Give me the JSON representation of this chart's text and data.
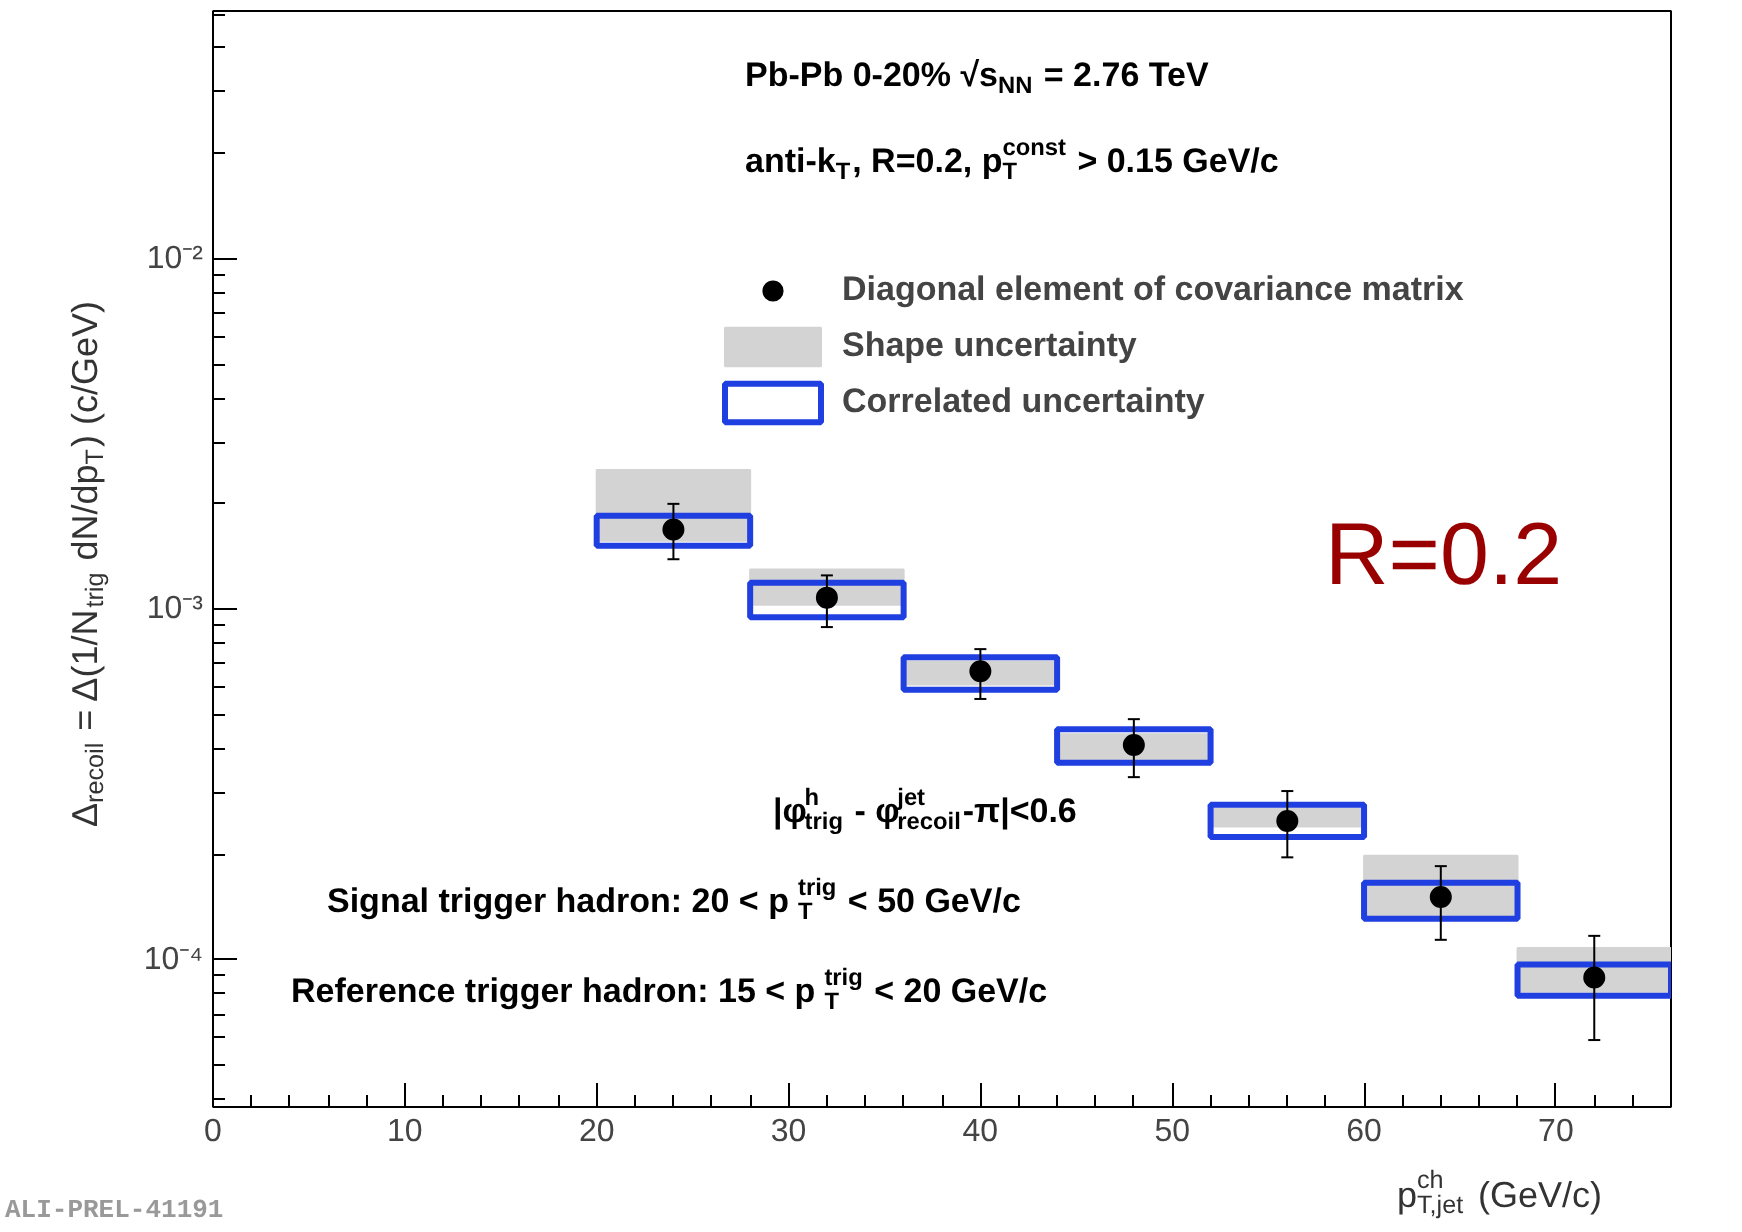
{
  "chart_data": {
    "type": "scatter",
    "xlabel": "p$_{T,jet}$$^{ch}$ (GeV/c)",
    "ylabel": "Δ$_{recoil}$ = Δ(1/N$_{trig}$ dN/dp$_{T}$) (c/GeV)",
    "log": "y",
    "xlim": [
      0,
      76
    ],
    "ylim": [
      3.8e-05,
      0.051
    ],
    "xticks": [
      0,
      10,
      20,
      30,
      40,
      50,
      60,
      70
    ],
    "yticks": [
      {
        "value": 0.0001,
        "label": "10⁻⁴"
      },
      {
        "value": 0.001,
        "label": "10⁻³"
      },
      {
        "value": 0.01,
        "label": "10⁻²"
      }
    ],
    "grid": false,
    "legend": "top right",
    "marker": "circle",
    "series": [
      {
        "name": "Shape uncertainty",
        "type": "bar",
        "color": "#d3d3d3",
        "x": [
          24,
          32,
          40,
          48,
          56,
          64,
          72
        ],
        "base": [
          0.00157,
          0.00103,
          0.00061,
          0.00037,
          0.00024,
          0.000133,
          8.1e-05
        ],
        "values": [
          0.00093,
          0.00027,
          0.0001,
          7e-05,
          3e-05,
          6.5e-05,
          2.7e-05
        ]
      },
      {
        "name": "Correlated uncertainty",
        "type": "bar",
        "color": "#1f3fe0",
        "line_style": "solid",
        "x": [
          24,
          32,
          40,
          48,
          56,
          64,
          72
        ],
        "base": [
          0.00152,
          0.00095,
          0.00059,
          0.000365,
          0.000224,
          0.000131,
          7.9e-05
        ],
        "values": [
          0.00033,
          0.00024,
          0.00014,
          9e-05,
          5.3e-05,
          3.5e-05,
          1.8e-05
        ]
      },
      {
        "name": "Diagonal element of covariance matrix",
        "color": "#000000",
        "x": [
          24,
          32,
          40,
          48,
          56,
          64,
          72
        ],
        "values": [
          0.00169,
          0.00108,
          0.000666,
          0.00041,
          0.000249,
          0.000151,
          8.9e-05
        ],
        "errors": [
          [
            0.00139,
            0.002
          ],
          [
            0.00089,
            0.00125
          ],
          [
            0.000555,
            0.00077
          ],
          [
            0.000332,
            0.000486
          ],
          [
            0.000196,
            0.000303
          ],
          [
            0.000114,
            0.000185
          ],
          [
            5.9e-05,
            0.000117
          ]
        ]
      }
    ],
    "annotations": [
      "Pb-Pb 0-20% √s$_{NN}$ = 2.76 TeV",
      "anti-k$_{T}$, R=0.2, p$_{T}$$^{const}$ > 0.15 GeV/c",
      "R=0.2",
      "|φ$_{trig}$$^{h}$ - φ$_{recoil}$$^{jet}$-π|<0.6",
      "Signal trigger hadron: 20 < p$_{T}$$^{trig}$ < 50 GeV/c",
      "Reference trigger hadron: 15 < p$_{T}$$^{trig}$ < 20 GeV/c",
      "ALI-PREL-41191"
    ]
  }
}
